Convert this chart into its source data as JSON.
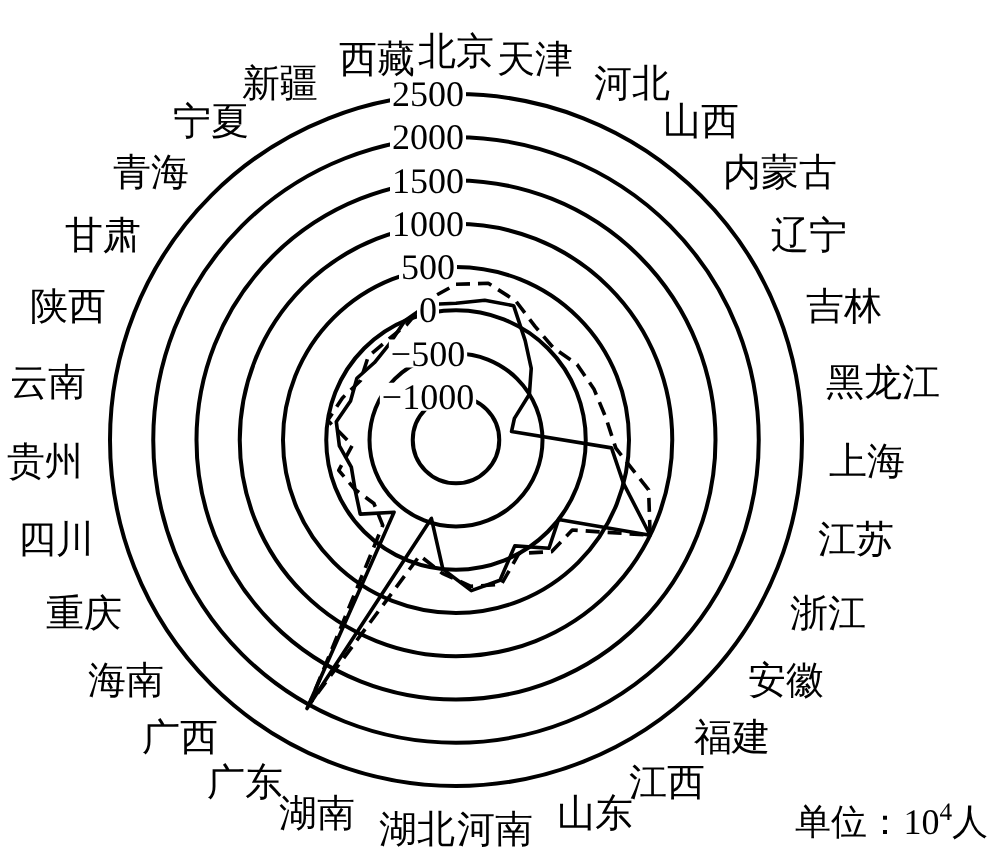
{
  "chart_data": {
    "type": "radar",
    "categories": [
      "北京",
      "天津",
      "河北",
      "山西",
      "内蒙古",
      "辽宁",
      "吉林",
      "黑龙江",
      "上海",
      "江苏",
      "浙江",
      "安徽",
      "福建",
      "江西",
      "山东",
      "河南",
      "湖北",
      "湖南",
      "广东",
      "广西",
      "海南",
      "重庆",
      "四川",
      "贵州",
      "云南",
      "陕西",
      "甘肃",
      "青海",
      "宁夏",
      "新疆",
      "西藏"
    ],
    "series": [
      {
        "color": "#000000",
        "line_style": "solid",
        "values": [
          80,
          150,
          190,
          -100,
          -300,
          -500,
          -780,
          -850,
          300,
          500,
          1000,
          0,
          150,
          -100,
          200,
          250,
          0,
          -550,
          2050,
          -400,
          -100,
          -200,
          -250,
          -150,
          -100,
          -200,
          -150,
          -200,
          -150,
          0,
          100
        ]
      },
      {
        "color": "#000000",
        "line_style": "dashed",
        "values": [
          300,
          350,
          250,
          100,
          50,
          150,
          200,
          250,
          350,
          800,
          1000,
          200,
          200,
          0,
          250,
          200,
          50,
          -100,
          2000,
          -200,
          -300,
          -200,
          -100,
          -300,
          0,
          -100,
          -200,
          -100,
          -100,
          -50,
          150
        ]
      }
    ],
    "ylim": [
      -1500,
      2500
    ],
    "yticks": [
      -1000,
      -500,
      0,
      500,
      1000,
      1500,
      2000,
      2500
    ],
    "grid": true,
    "annotations": [
      "单位：10$^{4}$人"
    ]
  }
}
